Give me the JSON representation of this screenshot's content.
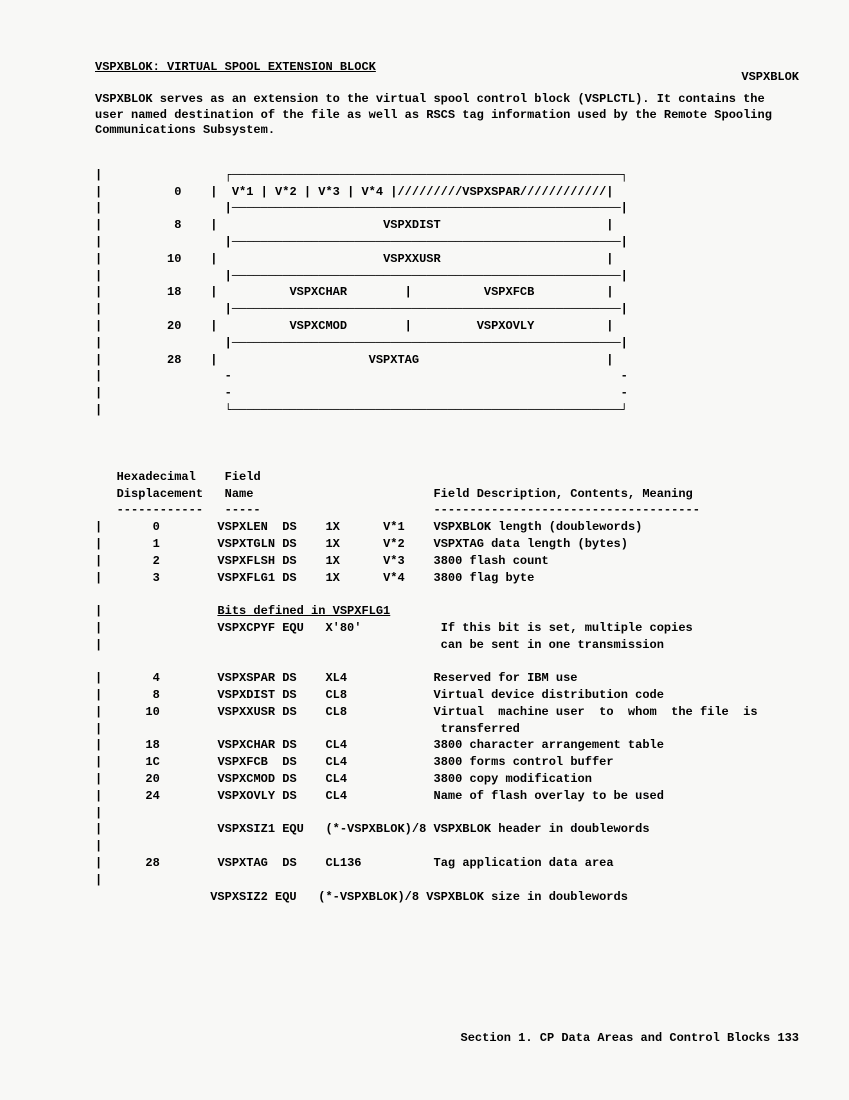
{
  "header_right": "VSPXBLOK",
  "title": "VSPXBLOK: VIRTUAL SPOOL EXTENSION BLOCK",
  "intro": "VSPXBLOK serves as an extension to the virtual spool control block (VSPLCTL). It contains the user named destination of the file as well as RSCS tag information used by the Remote Spooling Communications Subsystem.",
  "diagram": {
    "offset_0": "0",
    "offset_8": "8",
    "offset_10": "10",
    "offset_18": "18",
    "offset_20": "20",
    "offset_28": "28",
    "row0": "V*1 | V*2 | V*3 | V*4 |/////////VSPXSPAR////////////|",
    "row8": "VSPXDIST",
    "row10": "VSPXXUSR",
    "row18_l": "VSPXCHAR",
    "row18_r": "VSPXFCB",
    "row20_l": "VSPXCMOD",
    "row20_r": "VSPXOVLY",
    "row28": "VSPXTAG"
  },
  "colhead": {
    "hex1": "Hexadecimal",
    "hex2": "Displacement",
    "field1": "Field",
    "field2": "Name",
    "desc": "Field Description, Contents, Meaning"
  },
  "rows": {
    "r0_disp": "0",
    "r0_name": "VSPXLEN",
    "r0_ds": "DS",
    "r0_type": "1X",
    "r0_v": "V*1",
    "r0_desc": "VSPXBLOK length (doublewords)",
    "r1_disp": "1",
    "r1_name": "VSPXTGLN",
    "r1_ds": "DS",
    "r1_type": "1X",
    "r1_v": "V*2",
    "r1_desc": "VSPXTAG data length (bytes)",
    "r2_disp": "2",
    "r2_name": "VSPXFLSH",
    "r2_ds": "DS",
    "r2_type": "1X",
    "r2_v": "V*3",
    "r2_desc": "3800 flash count",
    "r3_disp": "3",
    "r3_name": "VSPXFLG1",
    "r3_ds": "DS",
    "r3_type": "1X",
    "r3_v": "V*4",
    "r3_desc": "3800 flag byte",
    "bits_label": "Bits defined in VSPXFLG1",
    "bit1_name": "VSPXCPYF",
    "bit1_ds": "EQU",
    "bit1_type": "X'80'",
    "bit1_desc1": "If this bit is set, multiple copies",
    "bit1_desc2": "can be sent in one transmission",
    "r4_disp": "4",
    "r4_name": "VSPXSPAR",
    "r4_ds": "DS",
    "r4_type": "XL4",
    "r4_desc": "Reserved for IBM use",
    "r8_disp": "8",
    "r8_name": "VSPXDIST",
    "r8_ds": "DS",
    "r8_type": "CL8",
    "r8_desc": "Virtual device distribution code",
    "r10_disp": "10",
    "r10_name": "VSPXXUSR",
    "r10_ds": "DS",
    "r10_type": "CL8",
    "r10_desc1": "Virtual  machine user  to  whom  the file  is",
    "r10_desc2": "transferred",
    "r18_disp": "18",
    "r18_name": "VSPXCHAR",
    "r18_ds": "DS",
    "r18_type": "CL4",
    "r18_desc": "3800 character arrangement table",
    "r1c_disp": "1C",
    "r1c_name": "VSPXFCB",
    "r1c_ds": "DS",
    "r1c_type": "CL4",
    "r1c_desc": "3800 forms control buffer",
    "r20_disp": "20",
    "r20_name": "VSPXCMOD",
    "r20_ds": "DS",
    "r20_type": "CL4",
    "r20_desc": "3800 copy modification",
    "r24_disp": "24",
    "r24_name": "VSPXOVLY",
    "r24_ds": "DS",
    "r24_type": "CL4",
    "r24_desc": "Name of flash overlay to be used",
    "siz1_name": "VSPXSIZ1",
    "siz1_ds": "EQU",
    "siz1_type": "(*-VSPXBLOK)/8",
    "siz1_desc": "VSPXBLOK header in doublewords",
    "r28_disp": "28",
    "r28_name": "VSPXTAG",
    "r28_ds": "DS",
    "r28_type": "CL136",
    "r28_desc": "Tag application data area",
    "siz2_name": "VSPXSIZ2",
    "siz2_ds": "EQU",
    "siz2_type": "(*-VSPXBLOK)/8",
    "siz2_desc": "VSPXBLOK size in doublewords"
  },
  "footer": "Section 1. CP Data Areas and Control Blocks  133"
}
